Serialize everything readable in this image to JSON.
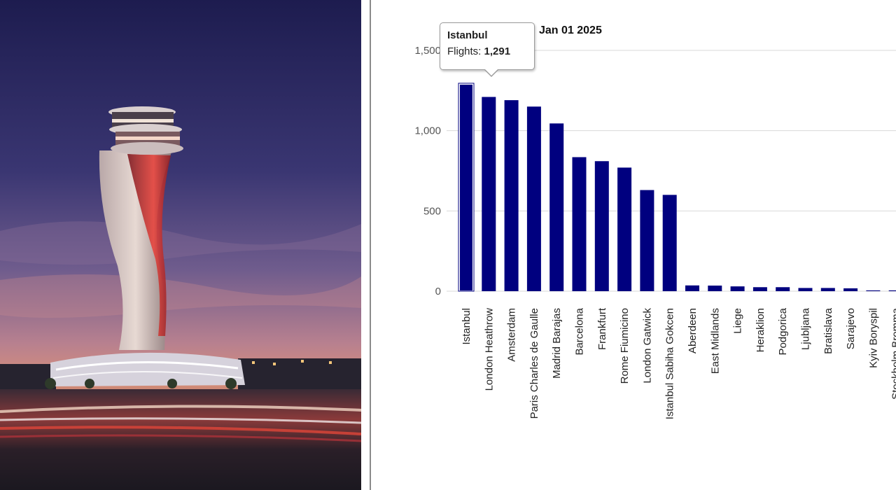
{
  "photo": {
    "subject": "Istanbul Airport air traffic control tower at dusk"
  },
  "colors": {
    "bar": "#00007f",
    "grid": "#d9d9d9",
    "sky_top": "#1f1f52",
    "sky_mid": "#6e5b8c",
    "sky_low": "#d0878a"
  },
  "chart_data": {
    "type": "bar",
    "date_label": "Jan 01 2025",
    "categories": [
      "Istanbul",
      "London Heathrow",
      "Amsterdam",
      "Paris Charles de Gaulle",
      "Madrid Barajas",
      "Barcelona",
      "Frankfurt",
      "Rome Fiumicino",
      "London Gatwick",
      "Istanbul Sabiha Gokcen",
      "Aberdeen",
      "East Midlands",
      "Liege",
      "Heraklion",
      "Podgorica",
      "Ljubljana",
      "Bratislava",
      "Sarajevo",
      "Kyiv Boryspil",
      "Stockholm Bromma"
    ],
    "values": [
      1291,
      1210,
      1190,
      1150,
      1045,
      835,
      810,
      770,
      630,
      600,
      36,
      35,
      30,
      25,
      25,
      20,
      20,
      18,
      5,
      5
    ],
    "ylim": [
      0,
      1500
    ],
    "yticks": [
      "0",
      "500",
      "1,000",
      "1,500"
    ],
    "grid": true,
    "highlighted_index": 0
  },
  "tooltip": {
    "title": "Istanbul",
    "label": "Flights: ",
    "value": "1,291"
  }
}
